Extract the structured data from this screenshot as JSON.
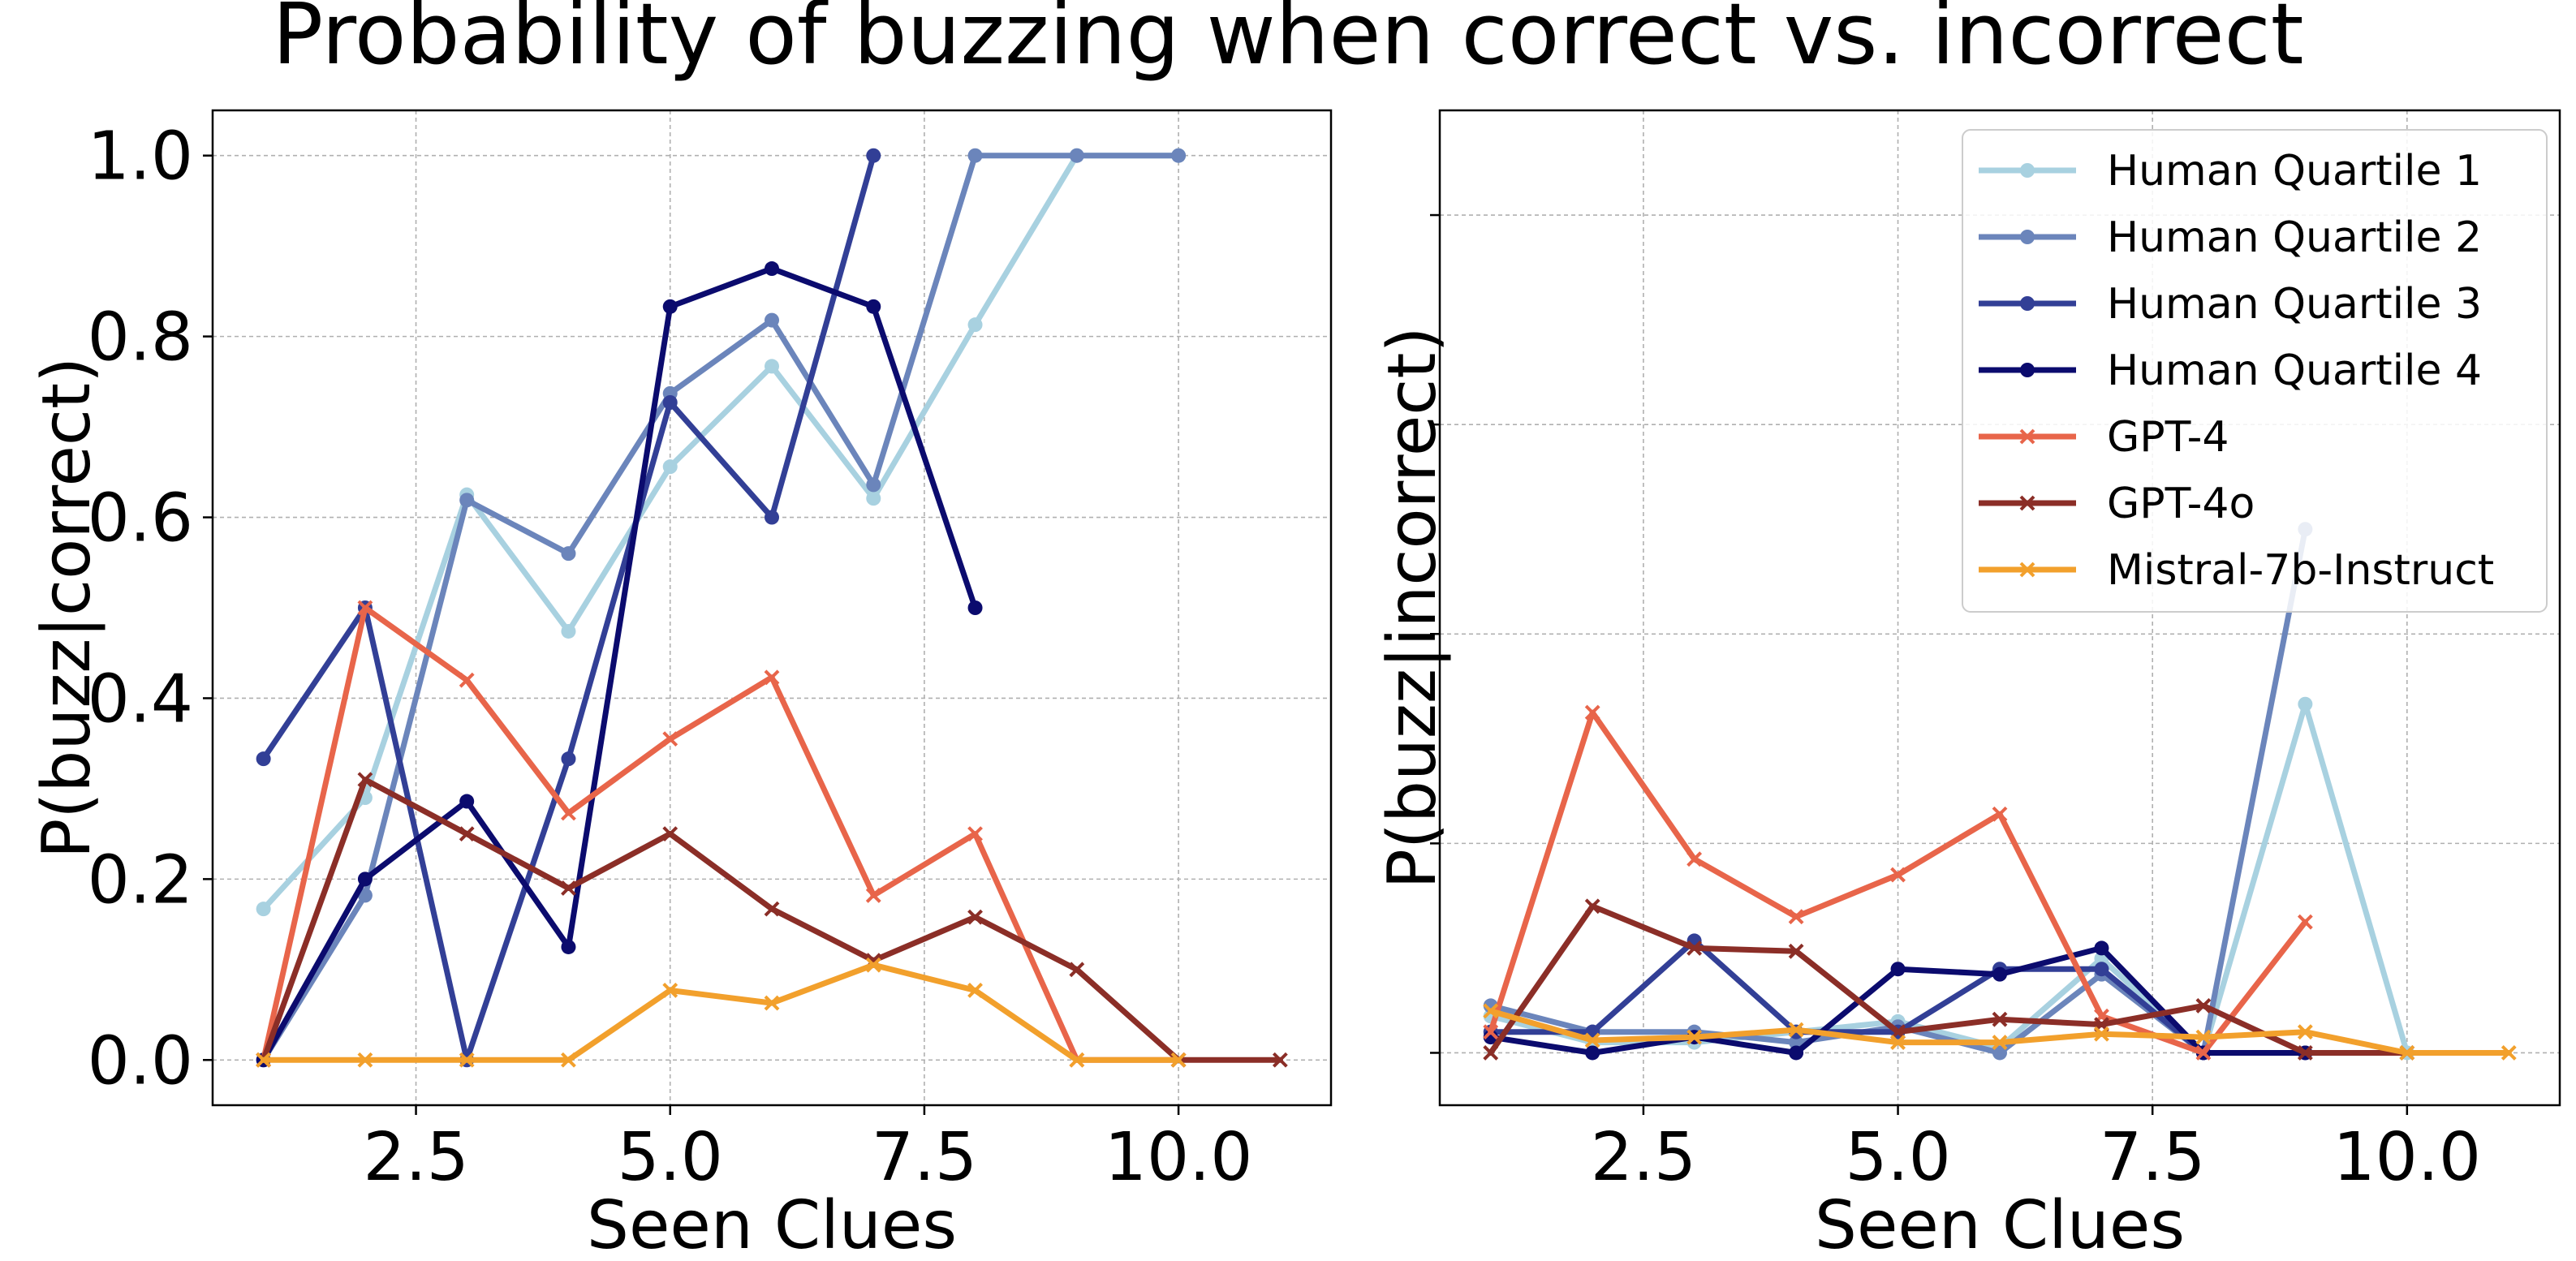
{
  "figure": {
    "title": "Probability of buzzing when correct vs. incorrect"
  },
  "colors": {
    "Human Quartile 1": "#a8d1e0",
    "Human Quartile 2": "#6b85bb",
    "Human Quartile 3": "#323f96",
    "Human Quartile 4": "#0b0b6e",
    "GPT-4": "#e8654a",
    "GPT-4o": "#8b2e27",
    "Mistral-7b-Instruct": "#f2a02c"
  },
  "chart_data": [
    {
      "type": "line",
      "panel": "left",
      "title": "",
      "xlabel": "Seen Clues",
      "ylabel": "P(buzz|correct)",
      "xlim": [
        0.5,
        11.5
      ],
      "ylim": [
        -0.05,
        1.05
      ],
      "xticks": [
        2.5,
        5.0,
        7.5,
        10.0
      ],
      "xtick_labels": [
        "2.5",
        "5.0",
        "7.5",
        "10.0"
      ],
      "yticks": [
        0.0,
        0.2,
        0.4,
        0.6,
        0.8,
        1.0
      ],
      "ytick_labels": [
        "0.0",
        "0.2",
        "0.4",
        "0.6",
        "0.8",
        "1.0"
      ],
      "grid": true,
      "legend": "none",
      "series": [
        {
          "name": "Human Quartile 1",
          "marker": "circle",
          "x": [
            1,
            2,
            3,
            4,
            5,
            6,
            7,
            8,
            9,
            10
          ],
          "y": [
            0.167,
            0.29,
            0.625,
            0.474,
            0.656,
            0.767,
            0.621,
            0.813,
            1.0,
            1.0
          ]
        },
        {
          "name": "Human Quartile 2",
          "marker": "circle",
          "x": [
            1,
            2,
            3,
            4,
            5,
            6,
            7,
            8,
            9,
            10
          ],
          "y": [
            0.0,
            0.182,
            0.619,
            0.56,
            0.737,
            0.818,
            0.636,
            1.0,
            1.0,
            1.0
          ]
        },
        {
          "name": "Human Quartile 3",
          "marker": "circle",
          "x": [
            1,
            2,
            3,
            4,
            5,
            6,
            7
          ],
          "y": [
            0.333,
            0.5,
            0.0,
            0.333,
            0.727,
            0.6,
            1.0
          ]
        },
        {
          "name": "Human Quartile 4",
          "marker": "circle",
          "x": [
            1,
            2,
            3,
            4,
            5,
            6,
            7,
            8
          ],
          "y": [
            0.0,
            0.2,
            0.286,
            0.125,
            0.833,
            0.875,
            0.833,
            0.5
          ]
        },
        {
          "name": "GPT-4",
          "marker": "x",
          "x": [
            1,
            2,
            3,
            4,
            5,
            6,
            7,
            8,
            9,
            10
          ],
          "y": [
            0.0,
            0.5,
            0.42,
            0.273,
            0.355,
            0.423,
            0.182,
            0.25,
            0.0,
            0.0
          ]
        },
        {
          "name": "GPT-4o",
          "marker": "x",
          "x": [
            1,
            2,
            3,
            4,
            5,
            6,
            7,
            8,
            9,
            10,
            11
          ],
          "y": [
            0.0,
            0.31,
            0.25,
            0.19,
            0.25,
            0.167,
            0.11,
            0.158,
            0.1,
            0.0,
            0.0
          ]
        },
        {
          "name": "Mistral-7b-Instruct",
          "marker": "x",
          "x": [
            1,
            2,
            3,
            4,
            5,
            6,
            7,
            8,
            9,
            10
          ],
          "y": [
            0.0,
            0.0,
            0.0,
            0.0,
            0.077,
            0.063,
            0.105,
            0.077,
            0.0,
            0.0
          ]
        }
      ]
    },
    {
      "type": "line",
      "panel": "right",
      "title": "",
      "xlabel": "Seen Clues",
      "ylabel": "P(buzz|incorrect)",
      "xlim": [
        0.5,
        11.5
      ],
      "ylim": [
        -0.05,
        0.9
      ],
      "xticks": [
        2.5,
        5.0,
        7.5,
        10.0
      ],
      "xtick_labels": [
        "2.5",
        "5.0",
        "7.5",
        "10.0"
      ],
      "yticks": [
        0.0,
        0.2,
        0.4,
        0.6,
        0.8
      ],
      "ytick_labels": [],
      "grid": true,
      "legend": "top-right",
      "series": [
        {
          "name": "Human Quartile 1",
          "marker": "circle",
          "x": [
            1,
            2,
            3,
            4,
            5,
            6,
            7,
            8,
            9,
            10
          ],
          "y": [
            0.035,
            0.01,
            0.01,
            0.02,
            0.03,
            0.005,
            0.09,
            0.0,
            0.333,
            0.0
          ]
        },
        {
          "name": "Human Quartile 2",
          "marker": "circle",
          "x": [
            1,
            2,
            3,
            4,
            5,
            6,
            7,
            8,
            9
          ],
          "y": [
            0.045,
            0.02,
            0.02,
            0.01,
            0.025,
            0.0,
            0.075,
            0.0,
            0.5
          ]
        },
        {
          "name": "Human Quartile 3",
          "marker": "circle",
          "x": [
            1,
            2,
            3,
            4,
            5,
            6,
            7,
            8,
            9
          ],
          "y": [
            0.02,
            0.02,
            0.107,
            0.02,
            0.02,
            0.08,
            0.08,
            0.0,
            0.0
          ]
        },
        {
          "name": "Human Quartile 4",
          "marker": "circle",
          "x": [
            1,
            2,
            3,
            4,
            5,
            6,
            7,
            8,
            9
          ],
          "y": [
            0.015,
            0.0,
            0.015,
            0.0,
            0.08,
            0.075,
            0.1,
            0.0,
            0.0
          ]
        },
        {
          "name": "GPT-4",
          "marker": "x",
          "x": [
            1,
            2,
            3,
            4,
            5,
            6,
            7,
            8,
            9
          ],
          "y": [
            0.02,
            0.325,
            0.185,
            0.13,
            0.17,
            0.228,
            0.035,
            0.0,
            0.125
          ]
        },
        {
          "name": "GPT-4o",
          "marker": "x",
          "x": [
            1,
            2,
            3,
            4,
            5,
            6,
            7,
            8,
            9,
            10
          ],
          "y": [
            0.0,
            0.14,
            0.1,
            0.097,
            0.02,
            0.032,
            0.027,
            0.045,
            0.0,
            0.0
          ]
        },
        {
          "name": "Mistral-7b-Instruct",
          "marker": "x",
          "x": [
            1,
            2,
            3,
            4,
            5,
            6,
            7,
            8,
            9,
            10,
            11
          ],
          "y": [
            0.04,
            0.012,
            0.015,
            0.022,
            0.01,
            0.01,
            0.018,
            0.015,
            0.02,
            0.0,
            0.0
          ]
        }
      ]
    }
  ]
}
